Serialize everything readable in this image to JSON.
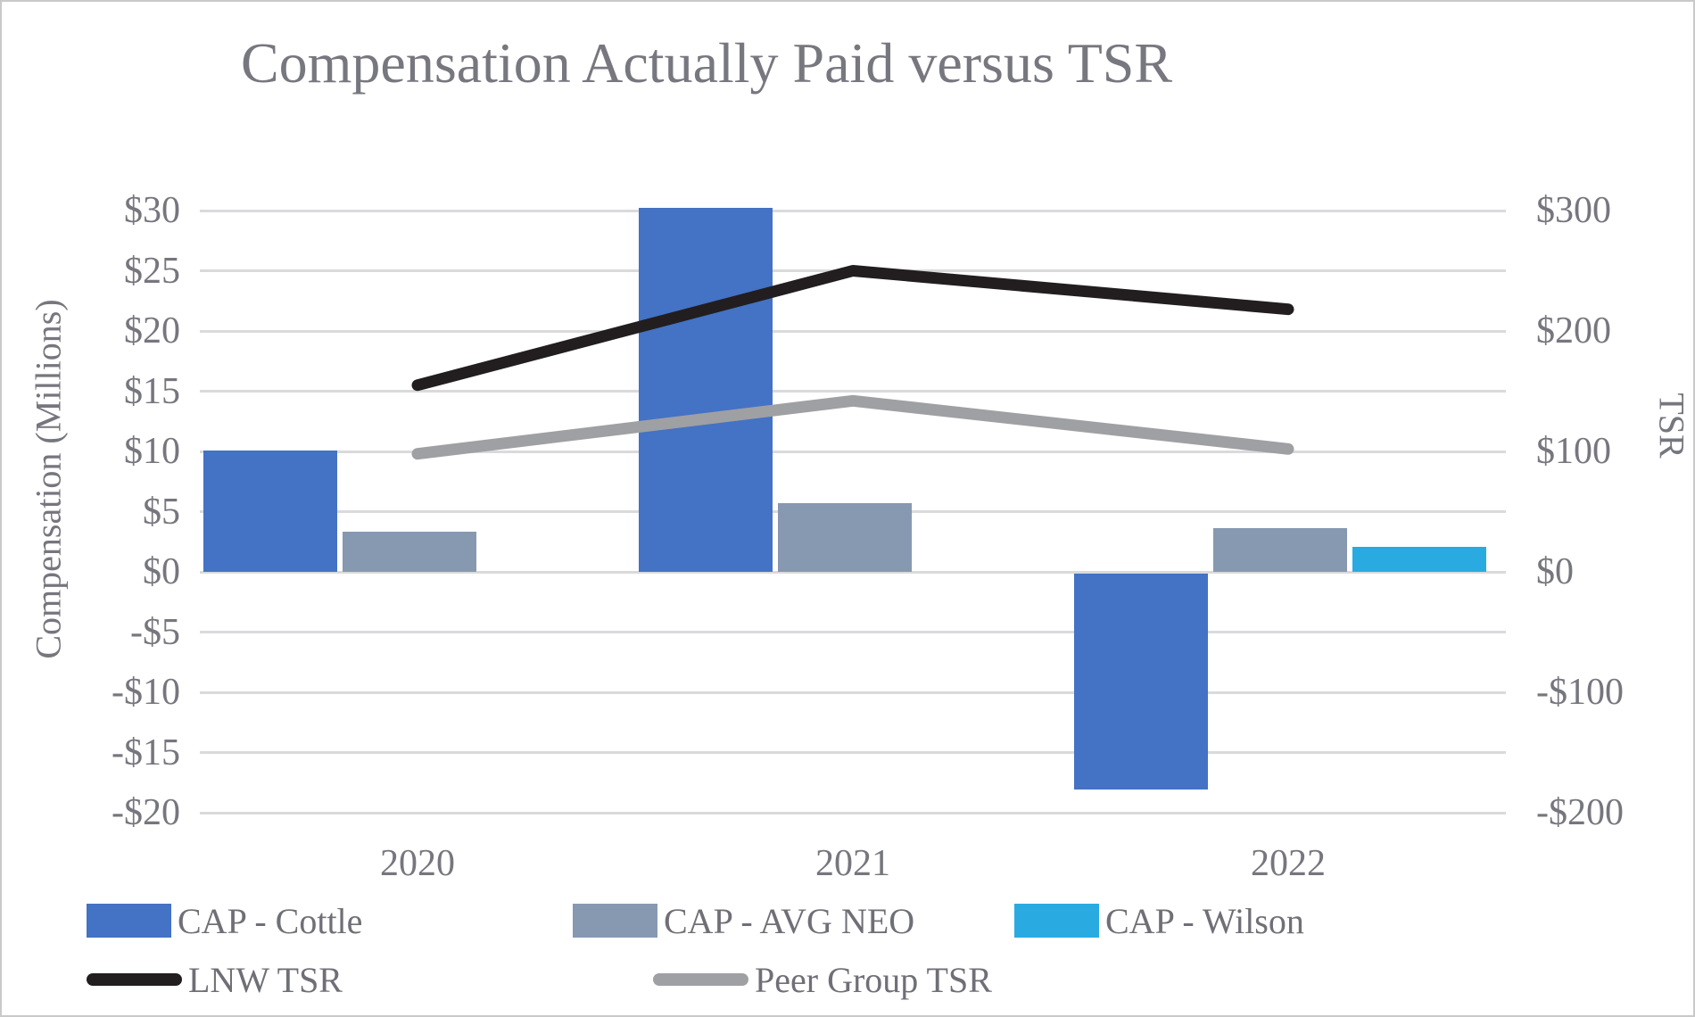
{
  "title": "Compensation Actually Paid versus TSR",
  "left_axis": {
    "title": "Compensation (Millions)",
    "ticks": [
      {
        "label": "$30",
        "value": 30
      },
      {
        "label": "$25",
        "value": 25
      },
      {
        "label": "$20",
        "value": 20
      },
      {
        "label": "$15",
        "value": 15
      },
      {
        "label": "$10",
        "value": 10
      },
      {
        "label": "$5",
        "value": 5
      },
      {
        "label": "$0",
        "value": 0
      },
      {
        "label": "-$5",
        "value": -5
      },
      {
        "label": "-$10",
        "value": -10
      },
      {
        "label": "-$15",
        "value": -15
      },
      {
        "label": "-$20",
        "value": -20
      }
    ]
  },
  "right_axis": {
    "title": "TSR",
    "ticks": [
      {
        "label": "$300",
        "value": 300
      },
      {
        "label": "$200",
        "value": 200
      },
      {
        "label": "$100",
        "value": 100
      },
      {
        "label": "$0",
        "value": 0
      },
      {
        "label": "-$100",
        "value": -100
      },
      {
        "label": "-$200",
        "value": -200
      }
    ]
  },
  "chart_data": {
    "type": "combo-bar-line",
    "categories": [
      "2020",
      "2021",
      "2022"
    ],
    "bar_series": [
      {
        "name": "CAP - Cottle",
        "color": "#4472c4",
        "axis": "left",
        "values": [
          10.1,
          30.2,
          -18.1
        ]
      },
      {
        "name": "CAP - AVG NEO",
        "color": "#8798b1",
        "axis": "left",
        "values": [
          3.3,
          5.7,
          3.6
        ]
      },
      {
        "name": "CAP - Wilson",
        "color": "#29abe2",
        "axis": "left",
        "values": [
          null,
          null,
          2.1
        ]
      }
    ],
    "line_series": [
      {
        "name": "LNW TSR",
        "color": "#221e1f",
        "axis": "right",
        "values": [
          155,
          250,
          218
        ]
      },
      {
        "name": "Peer Group TSR",
        "color": "#9fa0a3",
        "axis": "right",
        "values": [
          98,
          142,
          102
        ]
      }
    ],
    "left_ylim": [
      -20,
      30
    ],
    "left_step": 5,
    "right_ylim": [
      -200,
      300
    ],
    "right_step": 100,
    "grid": true,
    "legend_position": "bottom"
  }
}
